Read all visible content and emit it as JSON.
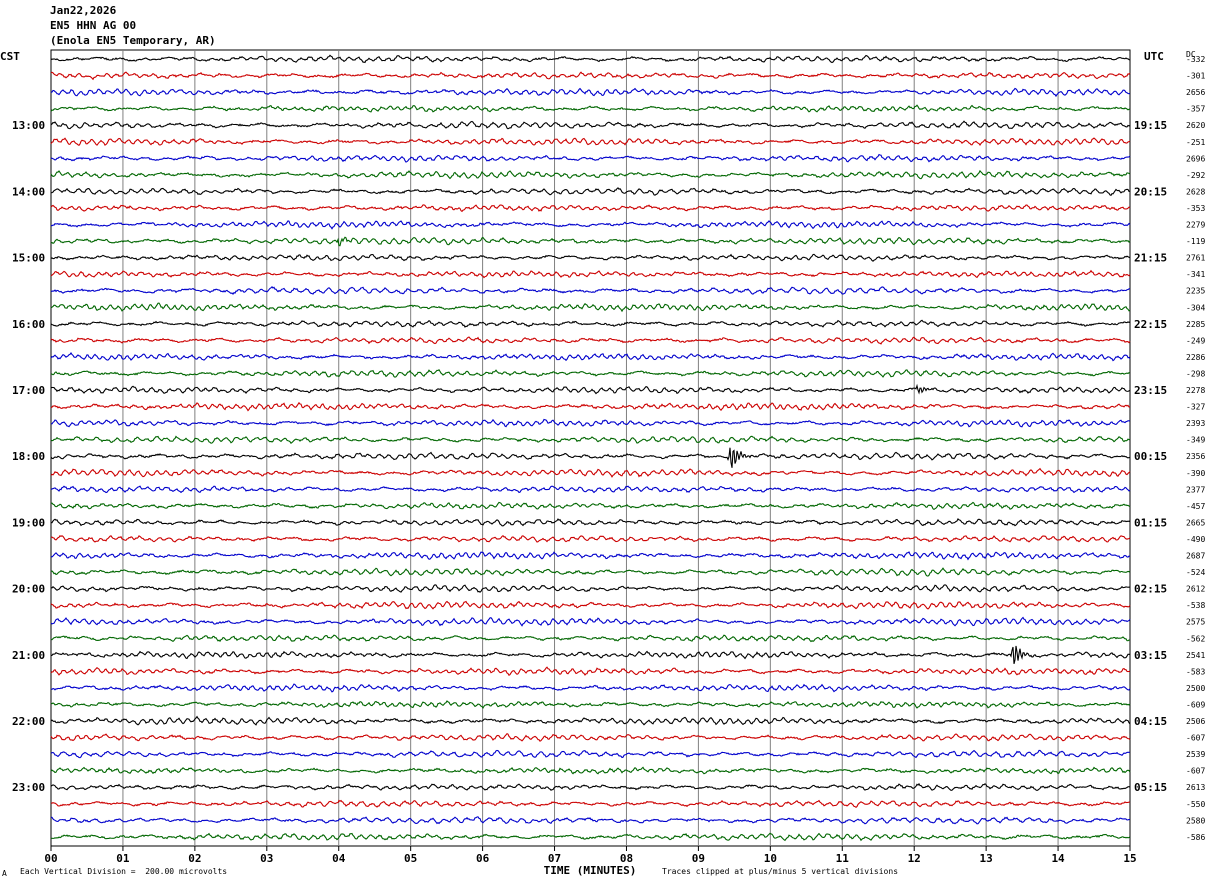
{
  "header": {
    "date": "Jan22,2026",
    "channel": "EN5 HHN AG 00",
    "station": "(Enola EN5 Temporary, AR)"
  },
  "left_zone": "CST",
  "right_zone": "UTC",
  "dc_label": "DC",
  "footer": {
    "scale_note": "Each Vertical Division =  200.00 microvolts",
    "clip_note": "Traces clipped at plus/minus 5 vertical divisions",
    "corner_mark": "A"
  },
  "colors": {
    "trace_cycle": [
      "#000000",
      "#cc0000",
      "#0000cc",
      "#006600"
    ],
    "grid": "#808080"
  },
  "chart_data": {
    "type": "line",
    "title": "",
    "xlabel": "TIME (MINUTES)",
    "ylabel": "",
    "xlim": [
      0,
      15
    ],
    "x_ticks": [
      "00",
      "01",
      "02",
      "03",
      "04",
      "05",
      "06",
      "07",
      "08",
      "09",
      "10",
      "11",
      "12",
      "13",
      "14",
      "15"
    ],
    "grid": true,
    "trace_count": 48,
    "left_hour_labels": [
      {
        "trace": 4,
        "label": "13:00"
      },
      {
        "trace": 8,
        "label": "14:00"
      },
      {
        "trace": 12,
        "label": "15:00"
      },
      {
        "trace": 16,
        "label": "16:00"
      },
      {
        "trace": 20,
        "label": "17:00"
      },
      {
        "trace": 24,
        "label": "18:00"
      },
      {
        "trace": 28,
        "label": "19:00"
      },
      {
        "trace": 32,
        "label": "20:00"
      },
      {
        "trace": 36,
        "label": "21:00"
      },
      {
        "trace": 40,
        "label": "22:00"
      },
      {
        "trace": 44,
        "label": "23:00"
      }
    ],
    "right_hour_labels": [
      {
        "trace": 4,
        "label": "19:15"
      },
      {
        "trace": 8,
        "label": "20:15"
      },
      {
        "trace": 12,
        "label": "21:15"
      },
      {
        "trace": 16,
        "label": "22:15"
      },
      {
        "trace": 20,
        "label": "23:15"
      },
      {
        "trace": 24,
        "label": "00:15"
      },
      {
        "trace": 28,
        "label": "01:15"
      },
      {
        "trace": 32,
        "label": "02:15"
      },
      {
        "trace": 36,
        "label": "03:15"
      },
      {
        "trace": 40,
        "label": "04:15"
      },
      {
        "trace": 44,
        "label": "05:15"
      }
    ],
    "dc_offsets": [
      "-332",
      "-301",
      "2656",
      "-357",
      "2620",
      "-251",
      "2696",
      "-292",
      "2628",
      "-353",
      "2279",
      "-119",
      "2761",
      "-341",
      "2235",
      "-304",
      "2285",
      "-249",
      "2286",
      "-298",
      "2278",
      "-327",
      "2393",
      "-349",
      "2356",
      "-390",
      "2377",
      "-457",
      "2665",
      "-490",
      "2687",
      "-524",
      "2612",
      "-538",
      "2575",
      "-562",
      "2541",
      "-583",
      "2500",
      "-609",
      "2506",
      "-607",
      "2539",
      "-607",
      "2613",
      "-550",
      "2580",
      "-586"
    ],
    "events": [
      {
        "trace": 24,
        "minute": 9.45,
        "amplitude": 1.6
      },
      {
        "trace": 36,
        "minute": 13.38,
        "amplitude": 1.4
      },
      {
        "trace": 20,
        "minute": 12.05,
        "amplitude": 0.5
      },
      {
        "trace": 11,
        "minute": 4.0,
        "amplitude": 0.4
      }
    ]
  }
}
